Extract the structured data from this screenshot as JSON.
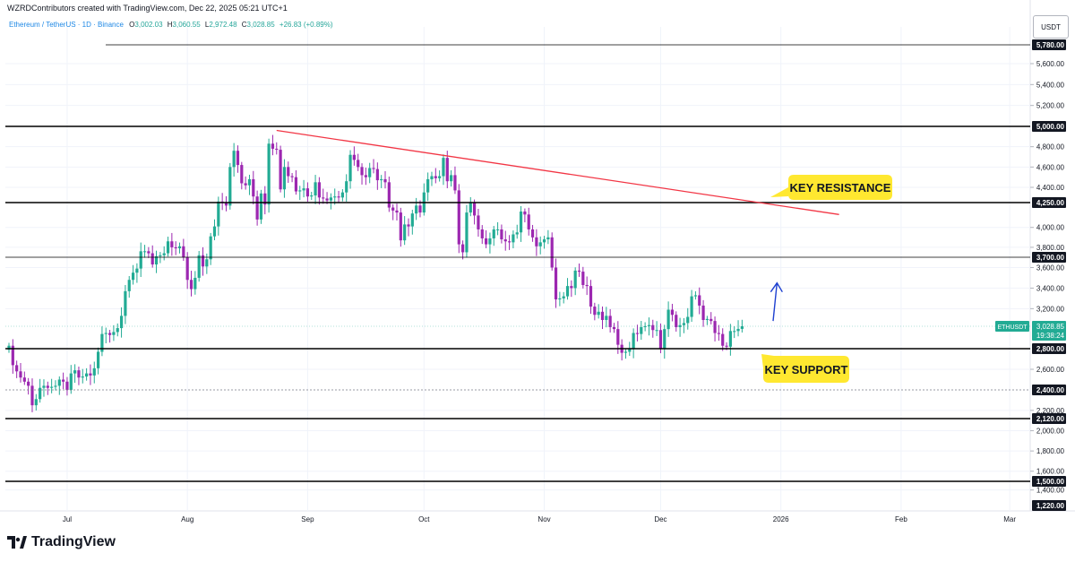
{
  "header": {
    "created_by": "WZRDContributors created with TradingView.com, Dec 22, 2025 05:21 UTC+1"
  },
  "legend": {
    "symbol": "Ethereum / TetherUS · 1D · Binance",
    "open_label": "O",
    "open": "3,002.03",
    "high_label": "H",
    "high": "3,060.55",
    "low_label": "L",
    "low": "2,972.48",
    "close_label": "C",
    "close": "3,028.85",
    "change": "+26.83 (+0.89%)"
  },
  "currency": "USDT",
  "brand": "TradingView",
  "colors": {
    "up": "#26a69a",
    "down": "#9c27b0",
    "up_bright": "#22ab94",
    "resistance_trendline": "#f23645",
    "arrow": "#1e40d0",
    "annotation_bg": "#ffe830",
    "price_label_bg": "#131722",
    "current_label_bg": "#22ab94",
    "grid": "#f0f3fa"
  },
  "chart_data": {
    "type": "candlestick",
    "symbol_label": "ETHUSDT",
    "current_price": "3,028.85",
    "countdown": "19:38:24",
    "y_axis_ticks": [
      "5,600.00",
      "5,400.00",
      "5,200.00",
      "4,800.00",
      "4,600.00",
      "4,400.00",
      "4,000.00",
      "3,800.00",
      "3,600.00",
      "3,400.00",
      "3,200.00",
      "2,600.00",
      "2,200.00",
      "2,000.00",
      "1,800.00",
      "1,600.00",
      "1,400.00"
    ],
    "x_axis_ticks": [
      "Jul",
      "Aug",
      "Sep",
      "Oct",
      "Nov",
      "Dec",
      "2026",
      "Feb",
      "Mar"
    ],
    "horizontal_levels": [
      {
        "value": "5,780.00",
        "style": "thin"
      },
      {
        "value": "5,000.00",
        "style": "thick"
      },
      {
        "value": "4,250.00",
        "style": "thick"
      },
      {
        "value": "3,700.00",
        "style": "thin"
      },
      {
        "value": "2,800.00",
        "style": "thick"
      },
      {
        "value": "2,400.00",
        "style": "dashed"
      },
      {
        "value": "2,120.00",
        "style": "thick"
      },
      {
        "value": "1,500.00",
        "style": "thick"
      },
      {
        "value": "1,220.00",
        "style": "none"
      }
    ],
    "trendline": {
      "from": {
        "date": "2025-08-24",
        "price": 4960
      },
      "to": {
        "date": "2026-01-16",
        "price": 4130
      }
    },
    "annotations": [
      {
        "text": "KEY RESISTANCE"
      },
      {
        "text": "KEY SUPPORT"
      }
    ],
    "arrow": {
      "from": {
        "date": "2025-12-30",
        "price": 3080
      },
      "to": {
        "date": "2025-12-31",
        "price": 3450
      }
    },
    "closes": [
      {
        "date": "2025-06-16",
        "close": 2830
      },
      {
        "date": "2025-06-17",
        "close": 2640
      },
      {
        "date": "2025-06-18",
        "close": 2580
      },
      {
        "date": "2025-06-19",
        "close": 2520
      },
      {
        "date": "2025-06-20",
        "close": 2480
      },
      {
        "date": "2025-06-21",
        "close": 2440
      },
      {
        "date": "2025-06-22",
        "close": 2250
      },
      {
        "date": "2025-06-23",
        "close": 2310
      },
      {
        "date": "2025-06-24",
        "close": 2420
      },
      {
        "date": "2025-06-25",
        "close": 2440
      },
      {
        "date": "2025-06-26",
        "close": 2420
      },
      {
        "date": "2025-06-27",
        "close": 2430
      },
      {
        "date": "2025-06-28",
        "close": 2440
      },
      {
        "date": "2025-06-29",
        "close": 2500
      },
      {
        "date": "2025-06-30",
        "close": 2480
      },
      {
        "date": "2025-07-01",
        "close": 2400
      },
      {
        "date": "2025-07-02",
        "close": 2560
      },
      {
        "date": "2025-07-03",
        "close": 2590
      },
      {
        "date": "2025-07-04",
        "close": 2520
      },
      {
        "date": "2025-07-05",
        "close": 2530
      },
      {
        "date": "2025-07-06",
        "close": 2560
      },
      {
        "date": "2025-07-07",
        "close": 2540
      },
      {
        "date": "2025-07-08",
        "close": 2610
      },
      {
        "date": "2025-07-09",
        "close": 2770
      },
      {
        "date": "2025-07-10",
        "close": 2950
      },
      {
        "date": "2025-07-11",
        "close": 2960
      },
      {
        "date": "2025-07-12",
        "close": 2940
      },
      {
        "date": "2025-07-13",
        "close": 2970
      },
      {
        "date": "2025-07-14",
        "close": 3010
      },
      {
        "date": "2025-07-15",
        "close": 3130
      },
      {
        "date": "2025-07-16",
        "close": 3370
      },
      {
        "date": "2025-07-17",
        "close": 3480
      },
      {
        "date": "2025-07-18",
        "close": 3550
      },
      {
        "date": "2025-07-19",
        "close": 3590
      },
      {
        "date": "2025-07-20",
        "close": 3760
      },
      {
        "date": "2025-07-21",
        "close": 3760
      },
      {
        "date": "2025-07-22",
        "close": 3740
      },
      {
        "date": "2025-07-23",
        "close": 3630
      },
      {
        "date": "2025-07-24",
        "close": 3710
      },
      {
        "date": "2025-07-25",
        "close": 3720
      },
      {
        "date": "2025-07-26",
        "close": 3740
      },
      {
        "date": "2025-07-27",
        "close": 3860
      },
      {
        "date": "2025-07-28",
        "close": 3800
      },
      {
        "date": "2025-07-29",
        "close": 3790
      },
      {
        "date": "2025-07-30",
        "close": 3810
      },
      {
        "date": "2025-07-31",
        "close": 3700
      },
      {
        "date": "2025-08-01",
        "close": 3480
      },
      {
        "date": "2025-08-02",
        "close": 3390
      },
      {
        "date": "2025-08-03",
        "close": 3500
      },
      {
        "date": "2025-08-04",
        "close": 3720
      },
      {
        "date": "2025-08-05",
        "close": 3610
      },
      {
        "date": "2025-08-06",
        "close": 3680
      },
      {
        "date": "2025-08-07",
        "close": 3910
      },
      {
        "date": "2025-08-08",
        "close": 4010
      },
      {
        "date": "2025-08-09",
        "close": 4260
      },
      {
        "date": "2025-08-10",
        "close": 4250
      },
      {
        "date": "2025-08-11",
        "close": 4220
      },
      {
        "date": "2025-08-12",
        "close": 4600
      },
      {
        "date": "2025-08-13",
        "close": 4760
      },
      {
        "date": "2025-08-14",
        "close": 4620
      },
      {
        "date": "2025-08-15",
        "close": 4440
      },
      {
        "date": "2025-08-16",
        "close": 4420
      },
      {
        "date": "2025-08-17",
        "close": 4480
      },
      {
        "date": "2025-08-18",
        "close": 4310
      },
      {
        "date": "2025-08-19",
        "close": 4080
      },
      {
        "date": "2025-08-20",
        "close": 4340
      },
      {
        "date": "2025-08-21",
        "close": 4230
      },
      {
        "date": "2025-08-22",
        "close": 4830
      },
      {
        "date": "2025-08-23",
        "close": 4780
      },
      {
        "date": "2025-08-24",
        "close": 4770
      },
      {
        "date": "2025-08-25",
        "close": 4380
      },
      {
        "date": "2025-08-26",
        "close": 4600
      },
      {
        "date": "2025-08-27",
        "close": 4510
      },
      {
        "date": "2025-08-28",
        "close": 4500
      },
      {
        "date": "2025-08-29",
        "close": 4360
      },
      {
        "date": "2025-08-30",
        "close": 4370
      },
      {
        "date": "2025-08-31",
        "close": 4390
      },
      {
        "date": "2025-09-01",
        "close": 4310
      },
      {
        "date": "2025-09-02",
        "close": 4320
      },
      {
        "date": "2025-09-03",
        "close": 4450
      },
      {
        "date": "2025-09-04",
        "close": 4300
      },
      {
        "date": "2025-09-05",
        "close": 4290
      },
      {
        "date": "2025-09-06",
        "close": 4270
      },
      {
        "date": "2025-09-07",
        "close": 4300
      },
      {
        "date": "2025-09-08",
        "close": 4310
      },
      {
        "date": "2025-09-09",
        "close": 4300
      },
      {
        "date": "2025-09-10",
        "close": 4350
      },
      {
        "date": "2025-09-11",
        "close": 4460
      },
      {
        "date": "2025-09-12",
        "close": 4720
      },
      {
        "date": "2025-09-13",
        "close": 4670
      },
      {
        "date": "2025-09-14",
        "close": 4600
      },
      {
        "date": "2025-09-15",
        "close": 4520
      },
      {
        "date": "2025-09-16",
        "close": 4500
      },
      {
        "date": "2025-09-17",
        "close": 4590
      },
      {
        "date": "2025-09-18",
        "close": 4580
      },
      {
        "date": "2025-09-19",
        "close": 4470
      },
      {
        "date": "2025-09-20",
        "close": 4480
      },
      {
        "date": "2025-09-21",
        "close": 4450
      },
      {
        "date": "2025-09-22",
        "close": 4200
      },
      {
        "date": "2025-09-23",
        "close": 4170
      },
      {
        "date": "2025-09-24",
        "close": 4150
      },
      {
        "date": "2025-09-25",
        "close": 3870
      },
      {
        "date": "2025-09-26",
        "close": 4030
      },
      {
        "date": "2025-09-27",
        "close": 4010
      },
      {
        "date": "2025-09-28",
        "close": 4140
      },
      {
        "date": "2025-09-29",
        "close": 4220
      },
      {
        "date": "2025-09-30",
        "close": 4150
      },
      {
        "date": "2025-10-01",
        "close": 4350
      },
      {
        "date": "2025-10-02",
        "close": 4480
      },
      {
        "date": "2025-10-03",
        "close": 4510
      },
      {
        "date": "2025-10-04",
        "close": 4490
      },
      {
        "date": "2025-10-05",
        "close": 4510
      },
      {
        "date": "2025-10-06",
        "close": 4690
      },
      {
        "date": "2025-10-07",
        "close": 4460
      },
      {
        "date": "2025-10-08",
        "close": 4520
      },
      {
        "date": "2025-10-09",
        "close": 4370
      },
      {
        "date": "2025-10-10",
        "close": 3830
      },
      {
        "date": "2025-10-11",
        "close": 3750
      },
      {
        "date": "2025-10-12",
        "close": 4150
      },
      {
        "date": "2025-10-13",
        "close": 4250
      },
      {
        "date": "2025-10-14",
        "close": 4120
      },
      {
        "date": "2025-10-15",
        "close": 3980
      },
      {
        "date": "2025-10-16",
        "close": 3890
      },
      {
        "date": "2025-10-17",
        "close": 3830
      },
      {
        "date": "2025-10-18",
        "close": 3890
      },
      {
        "date": "2025-10-19",
        "close": 3980
      },
      {
        "date": "2025-10-20",
        "close": 3980
      },
      {
        "date": "2025-10-21",
        "close": 3880
      },
      {
        "date": "2025-10-22",
        "close": 3860
      },
      {
        "date": "2025-10-23",
        "close": 3850
      },
      {
        "date": "2025-10-24",
        "close": 3930
      },
      {
        "date": "2025-10-25",
        "close": 3950
      },
      {
        "date": "2025-10-26",
        "close": 4160
      },
      {
        "date": "2025-10-27",
        "close": 4130
      },
      {
        "date": "2025-10-28",
        "close": 3980
      },
      {
        "date": "2025-10-29",
        "close": 3900
      },
      {
        "date": "2025-10-30",
        "close": 3810
      },
      {
        "date": "2025-10-31",
        "close": 3850
      },
      {
        "date": "2025-11-01",
        "close": 3880
      },
      {
        "date": "2025-11-02",
        "close": 3900
      },
      {
        "date": "2025-11-03",
        "close": 3600
      },
      {
        "date": "2025-11-04",
        "close": 3290
      },
      {
        "date": "2025-11-05",
        "close": 3300
      },
      {
        "date": "2025-11-06",
        "close": 3320
      },
      {
        "date": "2025-11-07",
        "close": 3420
      },
      {
        "date": "2025-11-08",
        "close": 3400
      },
      {
        "date": "2025-11-09",
        "close": 3570
      },
      {
        "date": "2025-11-10",
        "close": 3560
      },
      {
        "date": "2025-11-11",
        "close": 3430
      },
      {
        "date": "2025-11-12",
        "close": 3420
      },
      {
        "date": "2025-11-13",
        "close": 3220
      },
      {
        "date": "2025-11-14",
        "close": 3140
      },
      {
        "date": "2025-11-15",
        "close": 3170
      },
      {
        "date": "2025-11-16",
        "close": 3090
      },
      {
        "date": "2025-11-17",
        "close": 3130
      },
      {
        "date": "2025-11-18",
        "close": 3020
      },
      {
        "date": "2025-11-19",
        "close": 3000
      },
      {
        "date": "2025-11-20",
        "close": 2840
      },
      {
        "date": "2025-11-21",
        "close": 2760
      },
      {
        "date": "2025-11-22",
        "close": 2770
      },
      {
        "date": "2025-11-23",
        "close": 2800
      },
      {
        "date": "2025-11-24",
        "close": 2960
      },
      {
        "date": "2025-11-25",
        "close": 2950
      },
      {
        "date": "2025-11-26",
        "close": 3020
      },
      {
        "date": "2025-11-27",
        "close": 3030
      },
      {
        "date": "2025-11-28",
        "close": 3040
      },
      {
        "date": "2025-11-29",
        "close": 2990
      },
      {
        "date": "2025-11-30",
        "close": 2990
      },
      {
        "date": "2025-12-01",
        "close": 2800
      },
      {
        "date": "2025-12-02",
        "close": 3000
      },
      {
        "date": "2025-12-03",
        "close": 3190
      },
      {
        "date": "2025-12-04",
        "close": 3140
      },
      {
        "date": "2025-12-05",
        "close": 3020
      },
      {
        "date": "2025-12-06",
        "close": 3040
      },
      {
        "date": "2025-12-07",
        "close": 3060
      },
      {
        "date": "2025-12-08",
        "close": 3120
      },
      {
        "date": "2025-12-09",
        "close": 3320
      },
      {
        "date": "2025-12-10",
        "close": 3330
      },
      {
        "date": "2025-12-11",
        "close": 3230
      },
      {
        "date": "2025-12-12",
        "close": 3090
      },
      {
        "date": "2025-12-13",
        "close": 3100
      },
      {
        "date": "2025-12-14",
        "close": 3080
      },
      {
        "date": "2025-12-15",
        "close": 2960
      },
      {
        "date": "2025-12-16",
        "close": 2950
      },
      {
        "date": "2025-12-17",
        "close": 2830
      },
      {
        "date": "2025-12-18",
        "close": 2820
      },
      {
        "date": "2025-12-19",
        "close": 2980
      },
      {
        "date": "2025-12-20",
        "close": 2980
      },
      {
        "date": "2025-12-21",
        "close": 3002
      },
      {
        "date": "2025-12-22",
        "close": 3028.85
      }
    ]
  }
}
